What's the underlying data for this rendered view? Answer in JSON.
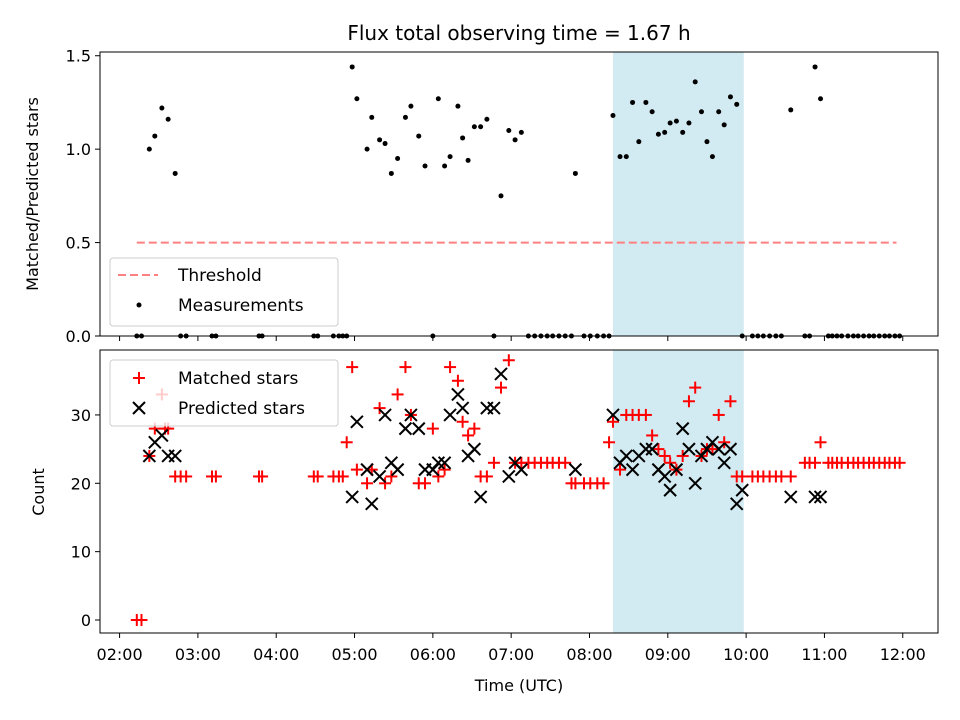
{
  "chart_data": [
    {
      "type": "scatter",
      "title": "Flux total observing time = 1.67 h",
      "xlabel": "",
      "ylabel": "Matched/Predicted stars",
      "xlim": [
        1.75,
        12.45
      ],
      "ylim": [
        0,
        1.52
      ],
      "yticks": [
        0.0,
        0.5,
        1.0,
        1.5
      ],
      "ytick_labels": [
        "0.0",
        "0.5",
        "1.0",
        "1.5"
      ],
      "xticks": [
        2,
        3,
        4,
        5,
        6,
        7,
        8,
        9,
        10,
        11,
        12
      ],
      "highlight_span": {
        "x0": 8.3,
        "x1": 9.97,
        "color": "#add8e6"
      },
      "threshold": {
        "name": "Threshold",
        "value": 0.5,
        "x_range": [
          2.22,
          11.92
        ],
        "color": "#ff8080",
        "style": "dashed"
      },
      "legend": {
        "position": "lower-left",
        "entries": [
          "Threshold",
          "Measurements"
        ]
      },
      "series": [
        {
          "name": "Measurements",
          "color": "#000000",
          "marker": "dot",
          "x": [
            2.22,
            2.28,
            2.38,
            2.45,
            2.54,
            2.62,
            2.71,
            2.78,
            2.85,
            3.18,
            3.23,
            3.78,
            3.82,
            4.48,
            4.53,
            4.73,
            4.8,
            4.85,
            4.9,
            4.97,
            5.03,
            5.16,
            5.22,
            5.32,
            5.39,
            5.47,
            5.55,
            5.65,
            5.72,
            5.82,
            5.9,
            6.0,
            6.07,
            6.15,
            6.22,
            6.32,
            6.38,
            6.45,
            6.53,
            6.61,
            6.69,
            6.78,
            6.87,
            6.97,
            7.05,
            7.13,
            7.22,
            7.3,
            7.38,
            7.46,
            7.53,
            7.61,
            7.69,
            7.77,
            7.82,
            7.93,
            8.01,
            8.1,
            8.18,
            8.25,
            8.3,
            8.39,
            8.47,
            8.55,
            8.63,
            8.72,
            8.8,
            8.88,
            8.96,
            9.03,
            9.11,
            9.19,
            9.27,
            9.35,
            9.43,
            9.5,
            9.57,
            9.65,
            9.72,
            9.8,
            9.88,
            9.95,
            10.08,
            10.15,
            10.22,
            10.3,
            10.38,
            10.45,
            10.57,
            10.75,
            10.81,
            10.88,
            10.95,
            11.05,
            11.1,
            11.16,
            11.22,
            11.3,
            11.37,
            11.43,
            11.5,
            11.57,
            11.63,
            11.7,
            11.77,
            11.83,
            11.9,
            11.96
          ],
          "y": [
            0,
            0,
            1.0,
            1.07,
            1.22,
            1.16,
            0.87,
            0,
            0,
            0,
            0,
            0,
            0,
            0,
            0,
            0,
            0,
            0,
            0,
            1.44,
            1.27,
            1.0,
            1.17,
            1.05,
            1.03,
            0.87,
            0.95,
            1.17,
            1.23,
            1.07,
            0.91,
            0,
            1.27,
            0.91,
            0.96,
            1.23,
            1.06,
            0.94,
            1.12,
            1.12,
            1.16,
            0,
            0.75,
            1.1,
            1.05,
            1.09,
            0,
            0,
            0,
            0,
            0,
            0,
            0,
            0,
            0.87,
            0,
            0,
            0,
            0,
            0,
            1.18,
            0.96,
            0.96,
            1.25,
            1.04,
            1.25,
            1.2,
            1.08,
            1.09,
            1.14,
            1.15,
            1.09,
            1.14,
            1.36,
            1.2,
            1.04,
            0.96,
            1.2,
            1.13,
            1.28,
            1.24,
            0,
            0,
            0,
            0,
            0,
            0,
            0,
            1.21,
            0,
            0,
            1.44,
            1.27,
            0,
            0,
            0,
            0,
            0,
            0,
            0,
            0,
            0,
            0,
            0,
            0,
            0,
            0,
            0
          ]
        }
      ]
    },
    {
      "type": "scatter",
      "title": "",
      "xlabel": "Time (UTC)",
      "ylabel": "Count",
      "xlim": [
        1.75,
        12.45
      ],
      "ylim": [
        -1.9,
        39.5
      ],
      "yticks": [
        0,
        10,
        20,
        30
      ],
      "ytick_labels": [
        "0",
        "10",
        "20",
        "30"
      ],
      "xticks": [
        2,
        3,
        4,
        5,
        6,
        7,
        8,
        9,
        10,
        11,
        12
      ],
      "xtick_labels": [
        "02:00",
        "03:00",
        "04:00",
        "05:00",
        "06:00",
        "07:00",
        "08:00",
        "09:00",
        "10:00",
        "11:00",
        "12:00"
      ],
      "highlight_span": {
        "x0": 8.3,
        "x1": 9.97,
        "color": "#add8e6"
      },
      "legend": {
        "position": "upper-left",
        "entries": [
          "Matched stars",
          "Predicted stars"
        ]
      },
      "series": [
        {
          "name": "Matched stars",
          "color": "#ff0000",
          "marker": "plus",
          "x": [
            2.22,
            2.28,
            2.38,
            2.45,
            2.54,
            2.58,
            2.62,
            2.71,
            2.78,
            2.85,
            3.18,
            3.23,
            3.78,
            3.82,
            4.48,
            4.53,
            4.73,
            4.8,
            4.85,
            4.9,
            4.97,
            5.03,
            5.16,
            5.22,
            5.32,
            5.39,
            5.47,
            5.55,
            5.65,
            5.72,
            5.82,
            5.9,
            6.0,
            6.07,
            6.15,
            6.22,
            6.32,
            6.38,
            6.45,
            6.53,
            6.61,
            6.69,
            6.78,
            6.87,
            6.97,
            7.05,
            7.13,
            7.22,
            7.3,
            7.38,
            7.46,
            7.53,
            7.61,
            7.69,
            7.77,
            7.82,
            7.93,
            8.01,
            8.1,
            8.18,
            8.25,
            8.3,
            8.39,
            8.47,
            8.55,
            8.63,
            8.72,
            8.8,
            8.88,
            8.96,
            9.03,
            9.11,
            9.19,
            9.27,
            9.35,
            9.43,
            9.5,
            9.57,
            9.65,
            9.72,
            9.8,
            9.88,
            9.95,
            10.08,
            10.15,
            10.22,
            10.3,
            10.38,
            10.45,
            10.57,
            10.75,
            10.81,
            10.88,
            10.95,
            11.05,
            11.1,
            11.16,
            11.22,
            11.3,
            11.37,
            11.43,
            11.5,
            11.57,
            11.63,
            11.7,
            11.77,
            11.83,
            11.9,
            11.96
          ],
          "y": [
            0,
            0,
            24,
            28,
            33,
            28,
            28,
            21,
            21,
            21,
            21,
            21,
            21,
            21,
            21,
            21,
            21,
            21,
            21,
            26,
            37,
            22,
            20,
            22,
            31,
            20,
            21,
            33,
            37,
            30,
            20,
            20,
            28,
            21,
            22,
            37,
            35,
            29,
            27,
            28,
            21,
            21,
            23,
            34,
            38,
            23,
            23,
            23,
            23,
            23,
            23,
            23,
            23,
            23,
            20,
            20,
            20,
            20,
            20,
            20,
            26,
            29,
            22,
            30,
            30,
            30,
            30,
            27,
            25,
            24,
            23,
            22,
            24,
            32,
            34,
            24,
            25,
            25,
            30,
            26,
            32,
            21,
            21,
            21,
            21,
            21,
            21,
            21,
            21,
            21,
            23,
            23,
            23,
            26,
            23,
            23,
            23,
            23,
            23,
            23,
            23,
            23,
            23,
            23,
            23,
            23,
            23,
            23,
            23
          ]
        },
        {
          "name": "Predicted stars",
          "color": "#000000",
          "marker": "x",
          "x": [
            2.38,
            2.45,
            2.54,
            2.62,
            2.71,
            4.97,
            5.03,
            5.16,
            5.22,
            5.32,
            5.39,
            5.47,
            5.55,
            5.65,
            5.72,
            5.82,
            5.9,
            6.0,
            6.07,
            6.15,
            6.22,
            6.32,
            6.38,
            6.45,
            6.53,
            6.61,
            6.69,
            6.78,
            6.87,
            6.97,
            7.05,
            7.13,
            7.82,
            8.3,
            8.39,
            8.47,
            8.55,
            8.63,
            8.72,
            8.8,
            8.88,
            8.96,
            9.03,
            9.11,
            9.19,
            9.27,
            9.35,
            9.43,
            9.5,
            9.57,
            9.65,
            9.72,
            9.8,
            9.88,
            9.95,
            10.57,
            10.88,
            10.95
          ],
          "y": [
            24,
            26,
            27,
            24,
            24,
            18,
            29,
            22,
            17,
            21,
            30,
            23,
            22,
            28,
            30,
            28,
            22,
            22,
            23,
            23,
            30,
            33,
            31,
            24,
            25,
            18,
            31,
            31,
            36,
            21,
            23,
            22,
            22,
            30,
            23,
            24,
            22,
            24,
            25,
            25,
            22,
            21,
            19,
            22,
            28,
            25,
            20,
            24,
            25,
            26,
            25,
            23,
            25,
            17,
            19,
            18,
            18,
            18
          ]
        }
      ]
    }
  ]
}
